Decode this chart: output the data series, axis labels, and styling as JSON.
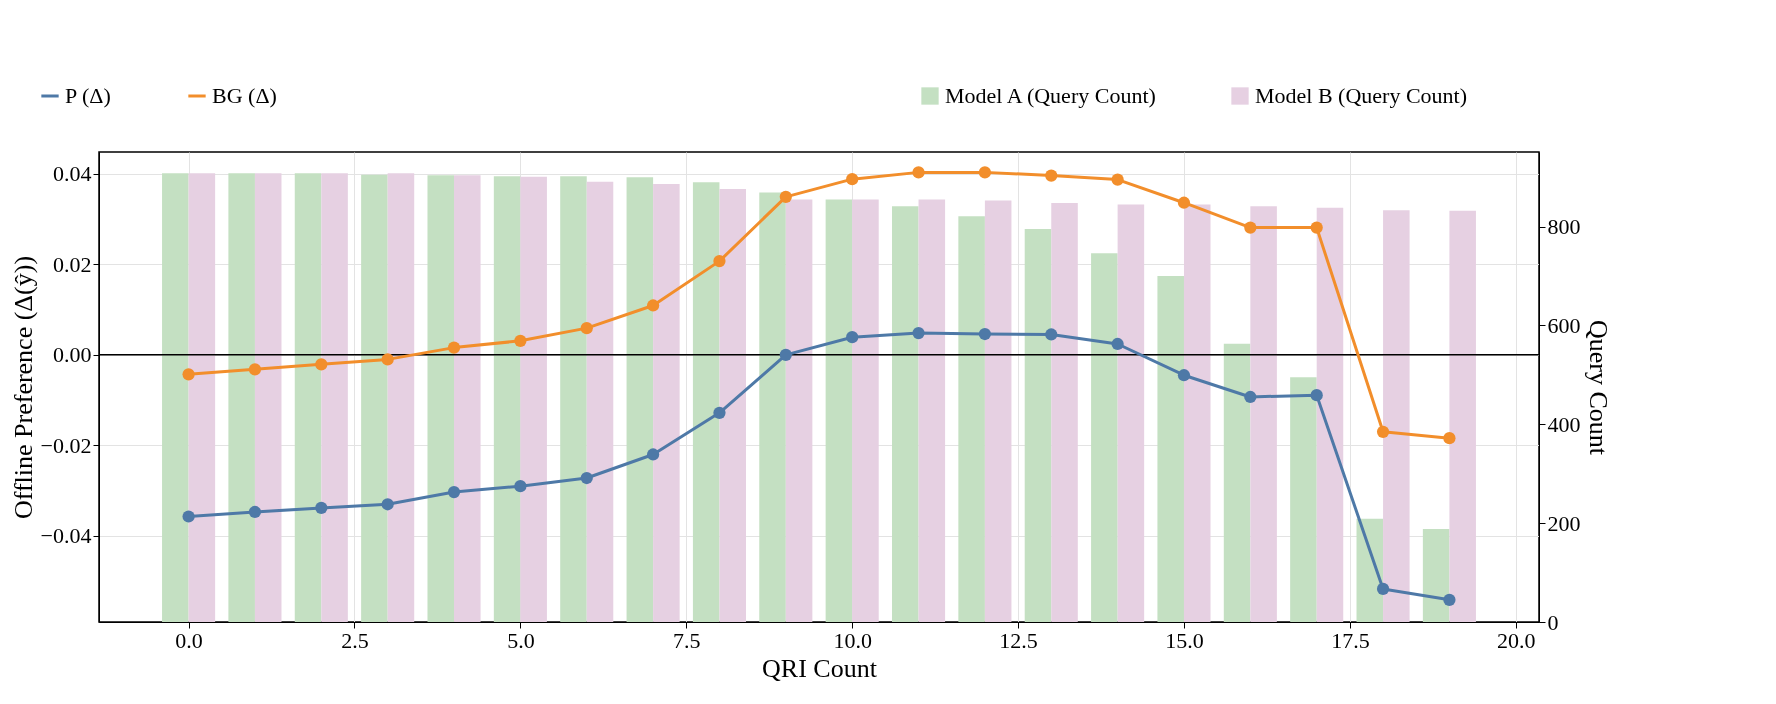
{
  "chart_data": {
    "type": "line",
    "xlabel": "QRI Count",
    "ylabel": "Offline Preference (Δ(ŷ))",
    "y2label": "Query Count",
    "x": [
      0,
      1,
      2,
      3,
      4,
      5,
      6,
      7,
      8,
      9,
      10,
      11,
      12,
      13,
      14,
      15,
      16,
      17,
      18,
      19
    ],
    "series": [
      {
        "name": "P (Δ)",
        "color": "#4e79a7",
        "values": [
          -0.0357,
          -0.0347,
          -0.0338,
          -0.033,
          -0.0303,
          -0.029,
          -0.0272,
          -0.022,
          -0.0128,
          0.0,
          0.0039,
          0.0048,
          0.0046,
          0.0045,
          0.0024,
          -0.0045,
          -0.0093,
          -0.0089,
          -0.0517,
          -0.0541
        ]
      },
      {
        "name": "BG (Δ)",
        "color": "#f28e2b",
        "values": [
          -0.0043,
          -0.0032,
          -0.0021,
          -0.001,
          0.0016,
          0.0031,
          0.0059,
          0.0109,
          0.0207,
          0.0349,
          0.0388,
          0.0403,
          0.0403,
          0.0396,
          0.0387,
          0.0336,
          0.0281,
          0.0281,
          -0.017,
          -0.0184
        ]
      },
      {
        "name": "Model A (Query Count)",
        "type": "bar",
        "axis": "y2",
        "color": "#c4e0c2",
        "values": [
          908,
          908,
          908,
          905,
          904,
          902,
          902,
          900,
          890,
          869,
          855,
          841,
          821,
          795,
          746,
          700,
          563,
          495,
          209,
          188
        ]
      },
      {
        "name": "Model B (Query Count)",
        "type": "bar",
        "axis": "y2",
        "color": "#e6d0e2",
        "values": [
          908,
          908,
          908,
          908,
          904,
          901,
          891,
          886,
          876,
          855,
          855,
          855,
          853,
          848,
          845,
          845,
          841,
          838,
          833,
          832
        ]
      }
    ],
    "xlim": [
      -1.35,
      20.35
    ],
    "xticks": [
      {
        "value": 0,
        "label": "0.0"
      },
      2.5,
      {
        "value": 5,
        "label": "5.0"
      },
      7.5,
      {
        "value": 10,
        "label": "10.0"
      },
      12.5,
      {
        "value": 15,
        "label": "15.0"
      },
      17.5,
      {
        "value": 20,
        "label": "20.0"
      }
    ],
    "ylim": [
      -0.059,
      0.0448
    ],
    "yticks": [
      {
        "value": -0.04,
        "label": "−0.04"
      },
      {
        "value": -0.02,
        "label": "−0.02"
      },
      {
        "value": 0,
        "label": "0.00"
      },
      0.02,
      0.04
    ],
    "y2lim": [
      0,
      951
    ],
    "y2ticks": [
      0,
      200,
      400,
      600,
      800
    ],
    "ref_lines": [
      {
        "axis": "y",
        "value": 0,
        "color": "#000000"
      }
    ],
    "marker": "circle",
    "line_style": "solid",
    "grid": true,
    "legend": "top"
  }
}
